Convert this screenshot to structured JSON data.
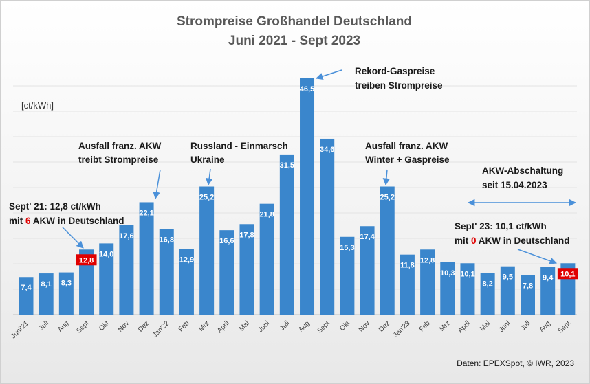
{
  "chart_data": {
    "type": "bar",
    "title": "Strompreise Großhandel Deutschland",
    "subtitle": "Juni 2021 - Sept 2023",
    "ylabel": "[ct/kWh]",
    "ylim": [
      0,
      48
    ],
    "categories": [
      "Juni'21",
      "Juli",
      "Aug",
      "Sept",
      "Okt",
      "Nov",
      "Dez",
      "Jan'22",
      "Feb",
      "Mrz",
      "April",
      "Mai",
      "Juni",
      "Juli",
      "Aug",
      "Sept",
      "Okt",
      "Nov",
      "Dez",
      "Jan'23",
      "Feb",
      "Mrz",
      "April",
      "Mai",
      "Juni",
      "Juli",
      "Aug",
      "Sept"
    ],
    "values": [
      7.4,
      8.1,
      8.3,
      12.8,
      14.0,
      17.6,
      22.1,
      16.8,
      12.9,
      25.2,
      16.6,
      17.8,
      21.8,
      31.5,
      46.5,
      34.6,
      15.3,
      17.4,
      25.2,
      11.8,
      12.8,
      10.3,
      10.1,
      8.2,
      9.5,
      7.8,
      9.4,
      10.1
    ],
    "value_labels": [
      "7,4",
      "8,1",
      "8,3",
      "12,8",
      "14,0",
      "17,6",
      "22,1",
      "16,8",
      "12,9",
      "25,2",
      "16,6",
      "17,8",
      "21,8",
      "31,5",
      "46,5",
      "34,6",
      "15,3",
      "17,4",
      "25,2",
      "11,8",
      "12,8",
      "10,3",
      "10,1",
      "8,2",
      "9,5",
      "7,8",
      "9,4",
      "10,1"
    ],
    "highlighted_indices": [
      3,
      27
    ],
    "bar_color": "#3a86cc",
    "highlight_color": "#e00000",
    "grid": true
  },
  "annotations": {
    "sept21_line1": "Sept' 21: 12,8 ct/kWh",
    "sept21_line2_prefix": "mit ",
    "sept21_count": "6",
    "sept21_line2_suffix": " AKW in Deutschland",
    "ausfall1_line1": "Ausfall franz. AKW",
    "ausfall1_line2": "treibt Strompreise",
    "russland_line1": "Russland - Einmarsch",
    "russland_line2": "Ukraine",
    "rekord_line1": "Rekord-Gaspreise",
    "rekord_line2": "treiben Strompreise",
    "ausfall2_line1": "Ausfall franz. AKW",
    "ausfall2_line2": "Winter + Gaspreise",
    "abschaltung_line1": "AKW-Abschaltung",
    "abschaltung_line2": "seit 15.04.2023",
    "sept23_line1": "Sept' 23: 10,1 ct/kWh",
    "sept23_line2_prefix": "mit ",
    "sept23_count": "0",
    "sept23_line2_suffix": " AKW in Deutschland"
  },
  "source": "Daten: EPEXSpot, © IWR, 2023",
  "colors": {
    "arrow": "#4a90d9",
    "accent_red": "#e00000"
  }
}
